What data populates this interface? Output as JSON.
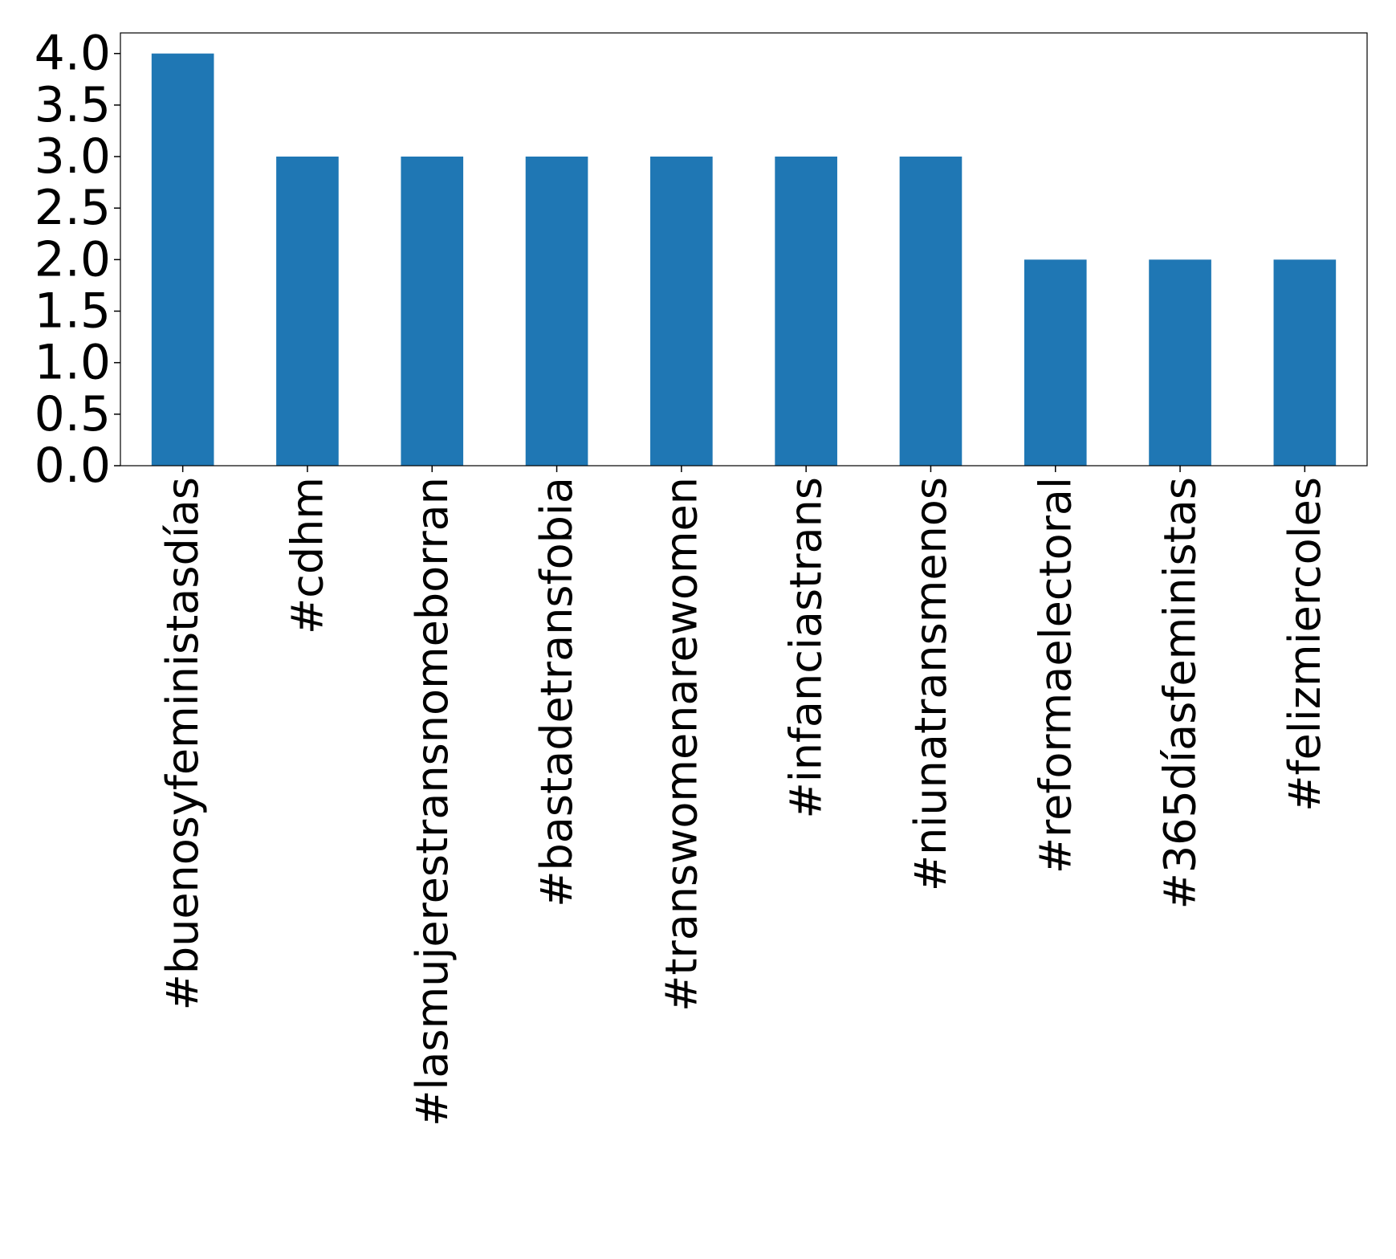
{
  "chart_data": {
    "type": "bar",
    "categories": [
      "#buenosyfeministasdías",
      "#cdhm",
      "#lasmujerestransnomeborran",
      "#bastadetransfobia",
      "#transwomenarewomen",
      "#infanciastrans",
      "#niunatransmenos",
      "#reformaelectoral",
      "#365díasfeministas",
      "#felizmiercoles"
    ],
    "values": [
      4,
      3,
      3,
      3,
      3,
      3,
      3,
      2,
      2,
      2
    ],
    "yticks": [
      "0.0",
      "0.5",
      "1.0",
      "1.5",
      "2.0",
      "2.5",
      "3.0",
      "3.5",
      "4.0"
    ],
    "ylim": [
      0,
      4.2
    ],
    "title": "",
    "xlabel": "",
    "ylabel": "",
    "grid": false,
    "bar_color": "#1f77b4"
  }
}
